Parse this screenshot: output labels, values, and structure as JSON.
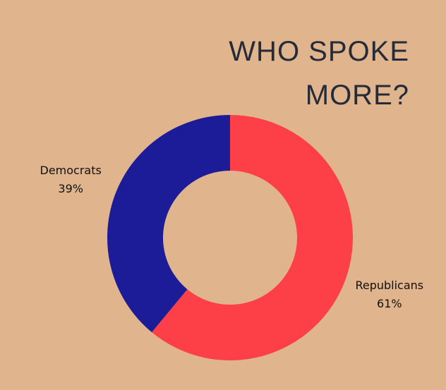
{
  "chart_data": {
    "type": "donut",
    "title": "WHO SPOKE MORE?",
    "categories": [
      "Republicans",
      "Democrats"
    ],
    "values": [
      61,
      39
    ],
    "value_labels": [
      "61%",
      "39%"
    ],
    "colors": [
      "#fd4047",
      "#1c1c99"
    ]
  }
}
